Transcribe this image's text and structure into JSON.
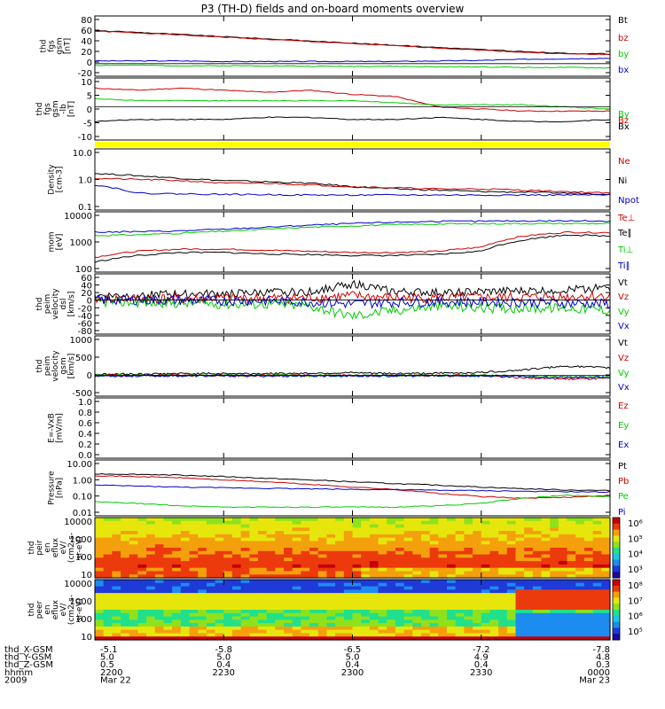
{
  "title": "P3 (TH-D) fields and on-board moments overview",
  "colors": {
    "black": "#000000",
    "red": "#cc0000",
    "green": "#00cc00",
    "blue": "#0000cc",
    "yellow": "#ffff00"
  },
  "chart_data": [
    {
      "type": "line",
      "ylabel": [
        "thd",
        "fgs",
        "gsm",
        "[nT]"
      ],
      "ylim": [
        -20,
        85
      ],
      "yticks": [
        "80",
        "60",
        "40",
        "20",
        "0",
        "-20"
      ],
      "legend": [
        "Bt",
        "bz",
        "by",
        "bx"
      ],
      "series": [
        {
          "name": "Bt",
          "color": "black",
          "values": [
            61,
            58,
            54,
            50,
            46,
            42,
            38,
            34,
            30,
            26,
            22,
            19,
            18
          ]
        },
        {
          "name": "bz",
          "color": "red",
          "values": [
            60,
            57,
            53,
            49,
            45,
            41,
            37,
            33,
            29,
            25,
            21,
            18,
            17
          ]
        },
        {
          "name": "by",
          "color": "green",
          "values": [
            -3,
            -3,
            -4,
            -4,
            -4,
            -5,
            -5,
            -5,
            -6,
            -6,
            -7,
            -7,
            -8
          ]
        },
        {
          "name": "bx",
          "color": "blue",
          "values": [
            5,
            5,
            5,
            4,
            4,
            4,
            4,
            4,
            5,
            6,
            8,
            9,
            10
          ]
        }
      ]
    },
    {
      "type": "line",
      "ylabel": [
        "thd",
        "fgs",
        "gsm",
        "-lb"
      ],
      "yunit": "[nT]",
      "ylim": [
        -15,
        13
      ],
      "yticks": [
        "10",
        "5",
        "0",
        "-5",
        "-10"
      ],
      "legend": [
        "By",
        "Bz",
        "Bx"
      ],
      "series": [
        {
          "name": "Bx",
          "color": "black",
          "values": [
            -7,
            -6,
            -6,
            -6,
            -5,
            -5,
            -6,
            -6,
            -5,
            -6,
            -7,
            -7,
            -6
          ]
        },
        {
          "name": "Bz",
          "color": "red",
          "values": [
            9,
            8,
            9,
            8,
            7,
            8,
            6,
            5,
            0,
            -1,
            -2,
            -2,
            -2
          ]
        },
        {
          "name": "By",
          "color": "green",
          "values": [
            4,
            3,
            3,
            3,
            3,
            3,
            3,
            2,
            1,
            1,
            1,
            0,
            -1
          ]
        }
      ]
    },
    {
      "type": "line",
      "ylabel": [
        "Density",
        "[cm-3]"
      ],
      "log": true,
      "ylim": [
        0.1,
        12
      ],
      "yticks": [
        "10.0",
        "1.0",
        "0.1"
      ],
      "legend": [
        "Ne",
        "Ni",
        "Npot"
      ],
      "series": [
        {
          "name": "Ni",
          "color": "black",
          "values": [
            1.8,
            1.5,
            1.2,
            1.0,
            0.9,
            0.8,
            0.6,
            0.5,
            0.45,
            0.4,
            0.38,
            0.35,
            0.33
          ]
        },
        {
          "name": "Ne",
          "color": "red",
          "values": [
            1.2,
            1.1,
            1.0,
            0.8,
            0.8,
            0.7,
            0.6,
            0.55,
            0.5,
            0.5,
            0.45,
            0.4,
            0.35
          ]
        },
        {
          "name": "Npot",
          "color": "blue",
          "values": [
            0.7,
            0.35,
            0.33,
            0.32,
            0.31,
            0.3,
            0.3,
            0.3,
            0.3,
            0.3,
            0.3,
            0.3,
            0.3
          ]
        }
      ]
    },
    {
      "type": "line",
      "ylabel": [
        "mom",
        "[eV]"
      ],
      "log": true,
      "ylim": [
        100,
        12000
      ],
      "yticks": [
        "10000",
        "1000",
        "100"
      ],
      "legend": [
        "Te⊥",
        "Te∥",
        "Ti⊥",
        "Ti∥"
      ],
      "series": [
        {
          "name": "Ti∥",
          "color": "blue",
          "values": [
            2500,
            2600,
            2800,
            3200,
            3800,
            4500,
            5200,
            5800,
            6200,
            6300,
            6500,
            6500,
            6400
          ]
        },
        {
          "name": "Ti⊥",
          "color": "green",
          "values": [
            1900,
            2000,
            2300,
            2700,
            3200,
            3800,
            4300,
            4700,
            5000,
            5100,
            5200,
            5200,
            5200
          ]
        },
        {
          "name": "Te⊥",
          "color": "red",
          "values": [
            300,
            500,
            600,
            600,
            550,
            500,
            450,
            450,
            500,
            700,
            1800,
            2500,
            2400
          ]
        },
        {
          "name": "Te∥",
          "color": "black",
          "values": [
            200,
            350,
            450,
            450,
            400,
            380,
            350,
            350,
            380,
            500,
            1300,
            2000,
            1800
          ]
        }
      ]
    },
    {
      "type": "line",
      "ylabel": [
        "thd",
        "peim",
        "velocity",
        "dsl",
        "[km/s]"
      ],
      "ylim": [
        -80,
        60
      ],
      "yticks": [
        "60",
        "40",
        "20",
        "0",
        "-20",
        "-40",
        "-60",
        "-80"
      ],
      "legend": [
        "Vt",
        "Vz",
        "Vy",
        "Vx"
      ],
      "series": [
        {
          "name": "Vt",
          "color": "black",
          "values": [
            10,
            12,
            15,
            15,
            18,
            20,
            40,
            20,
            18,
            20,
            22,
            25,
            30
          ]
        },
        {
          "name": "Vz",
          "color": "red",
          "values": [
            2,
            3,
            3,
            4,
            4,
            5,
            10,
            5,
            5,
            6,
            6,
            8,
            10
          ]
        },
        {
          "name": "Vy",
          "color": "green",
          "values": [
            -5,
            -6,
            -8,
            -10,
            -10,
            -15,
            -40,
            -25,
            -15,
            -20,
            -20,
            -20,
            -25
          ]
        },
        {
          "name": "Vx",
          "color": "blue",
          "values": [
            0,
            0,
            -1,
            -2,
            -2,
            -5,
            -10,
            -5,
            -5,
            -5,
            -6,
            -8,
            -10
          ]
        }
      ]
    },
    {
      "type": "line",
      "ylabel": [
        "thd",
        "peim",
        "velocity",
        "gsm",
        "[km/s]"
      ],
      "ylim": [
        -500,
        1000
      ],
      "yticks": [
        "1000",
        "500",
        "0",
        "-500"
      ],
      "legend": [
        "Vt",
        "Vz",
        "Vy",
        "Vx"
      ],
      "series": [
        {
          "name": "Vt",
          "color": "black",
          "values": [
            30,
            40,
            50,
            50,
            50,
            60,
            70,
            50,
            60,
            80,
            150,
            250,
            200
          ]
        },
        {
          "name": "Vz",
          "color": "red",
          "values": [
            0,
            0,
            0,
            0,
            0,
            0,
            0,
            0,
            0,
            0,
            -50,
            -100,
            -80
          ]
        },
        {
          "name": "Vy",
          "color": "green",
          "values": [
            0,
            0,
            0,
            0,
            0,
            0,
            0,
            0,
            0,
            0,
            -20,
            -40,
            -30
          ]
        },
        {
          "name": "Vx",
          "color": "blue",
          "values": [
            -10,
            -10,
            -10,
            -10,
            -10,
            -10,
            -10,
            -10,
            -10,
            -10,
            -30,
            -60,
            -50
          ]
        }
      ]
    },
    {
      "type": "line",
      "ylabel": [
        "E=-VxB",
        "[mV/m]"
      ],
      "ylim": [
        0,
        1
      ],
      "yticks": [
        "1.0",
        "0.8",
        "0.6",
        "0.4",
        "0.2",
        "0.0"
      ],
      "legend": [
        "Ez",
        "Ey",
        "Ex"
      ],
      "series": []
    },
    {
      "type": "line",
      "ylabel": [
        "Pressure",
        "[nPa]"
      ],
      "log": true,
      "ylim": [
        0.01,
        10
      ],
      "yticks": [
        "10.00",
        "1.00",
        "0.10",
        "0.01"
      ],
      "legend": [
        "Pt",
        "Pb",
        "Pe",
        "Pi"
      ],
      "series": [
        {
          "name": "Pt",
          "color": "black",
          "values": [
            2.0,
            1.9,
            1.7,
            1.4,
            1.1,
            0.9,
            0.7,
            0.55,
            0.45,
            0.35,
            0.28,
            0.24,
            0.22
          ]
        },
        {
          "name": "Pb",
          "color": "red",
          "values": [
            1.6,
            1.4,
            1.2,
            0.9,
            0.7,
            0.5,
            0.35,
            0.25,
            0.15,
            0.1,
            0.08,
            0.09,
            0.12
          ]
        },
        {
          "name": "Pe",
          "color": "green",
          "values": [
            0.05,
            0.04,
            0.03,
            0.025,
            0.025,
            0.025,
            0.025,
            0.025,
            0.03,
            0.04,
            0.08,
            0.12,
            0.1
          ]
        },
        {
          "name": "Pi",
          "color": "blue",
          "values": [
            0.45,
            0.4,
            0.35,
            0.32,
            0.3,
            0.28,
            0.26,
            0.25,
            0.23,
            0.22,
            0.2,
            0.19,
            0.18
          ]
        }
      ]
    },
    {
      "type": "heatmap",
      "ylabel": [
        "thd",
        "peir",
        "en",
        "eflux",
        "eV/",
        "(cm2-s-",
        "sr-eV)"
      ],
      "yticks": [
        "10000",
        "1000",
        "100",
        "10"
      ],
      "colorbar_ticks": [
        "10⁶",
        "10⁵",
        "10⁴",
        "10³"
      ]
    },
    {
      "type": "heatmap",
      "ylabel": [
        "thd",
        "peer",
        "en",
        "eflux",
        "eV/",
        "(cm2-s-",
        "sr-eV)"
      ],
      "yticks": [
        "10000",
        "1000",
        "100",
        "10"
      ],
      "colorbar_ticks": [
        "10⁸",
        "10⁷",
        "10⁶",
        "10⁵"
      ]
    }
  ],
  "x_axis": {
    "rows": [
      {
        "label": "thd_X-GSM",
        "values": [
          "-5.1",
          "-5.8",
          "-6.5",
          "-7.2",
          "-7.8"
        ]
      },
      {
        "label": "thd_Y-GSM",
        "values": [
          "5.0",
          "5.0",
          "5.0",
          "4.9",
          "4.8"
        ]
      },
      {
        "label": "thd_Z-GSM",
        "values": [
          "0.5",
          "0.4",
          "0.4",
          "0.4",
          "0.3"
        ]
      },
      {
        "label": "hhmm",
        "values": [
          "2200",
          "2230",
          "2300",
          "2330",
          "0000"
        ]
      },
      {
        "label": "2009",
        "values": [
          "Mar 22",
          "",
          "",
          "",
          "Mar 23"
        ]
      }
    ]
  }
}
